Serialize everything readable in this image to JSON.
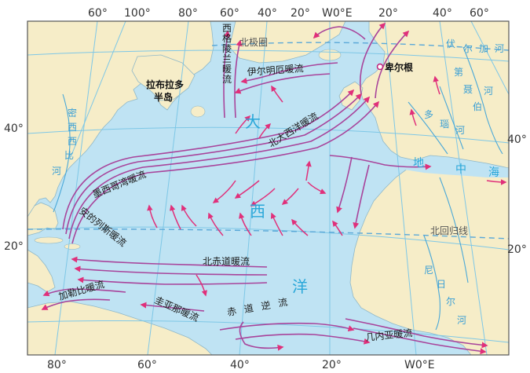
{
  "colors": {
    "ocean": "#bfe3f3",
    "land": "#f6edc8",
    "current": "#a8449b",
    "arrow": "#e0307a",
    "grid": "#7ec7e6",
    "ocean_label": "#29a7d9"
  },
  "top_longitudes": [
    "60°",
    "100°",
    "80°",
    "60°",
    "40°",
    "20°",
    "W0°E",
    "20°",
    "40°",
    "60°"
  ],
  "bottom_longitudes": [
    "80°",
    "60°",
    "40°",
    "20°",
    "W0°E"
  ],
  "left_latitudes": [
    "40°",
    "20°"
  ],
  "right_latitudes": [
    "40°",
    "20°"
  ],
  "ocean_name": [
    "大",
    "西",
    "洋"
  ],
  "lines": {
    "arctic_circle": "北极圈",
    "tropic_of_cancer": "北回归线"
  },
  "currents": {
    "west_greenland": [
      "西",
      "格",
      "陵",
      "兰",
      "暖",
      "流"
    ],
    "irminger": "伊尔明厄暖流",
    "north_atlantic": "北大西洋暖流",
    "gulf_stream": "墨西哥湾暖流",
    "antilles": "安的列斯暖流",
    "north_equatorial": "北赤道暖流",
    "caribbean": "加勒比暖流",
    "guiana": "圭亚那暖流",
    "equatorial_counter": "赤道逆流",
    "guinea": "几内亚暖流"
  },
  "places": {
    "labrador": [
      "拉布拉多",
      "半岛"
    ],
    "bergen": "卑尔根",
    "mediterranean": [
      "地",
      "中",
      "海"
    ]
  },
  "rivers": {
    "mississippi": [
      "密",
      "西",
      "西",
      "比",
      "河"
    ],
    "volga": [
      "伏",
      "尔",
      "加",
      "河"
    ],
    "dnieper": [
      "第",
      "聂",
      "伯",
      "河"
    ],
    "danube": [
      "多",
      "瑙",
      "河"
    ],
    "nile": [
      "尼",
      "日",
      "尔",
      "河"
    ]
  }
}
